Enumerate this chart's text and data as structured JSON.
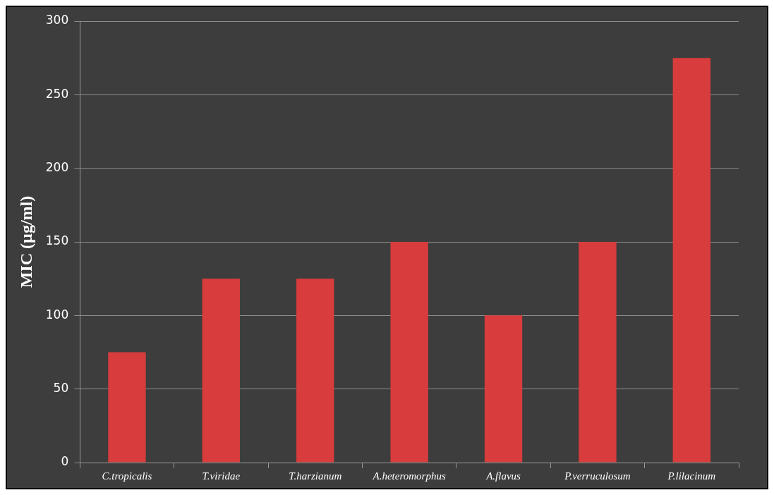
{
  "chart_data": {
    "type": "bar",
    "ylabel": "MIC (µg/ml)",
    "categories": [
      "C.tropicalis",
      "T.viridae",
      "T.harzianum",
      "A.heteromorphus",
      "A.flavus",
      "P.verruculosum",
      "P.lilacinum"
    ],
    "values": [
      75,
      125,
      125,
      150,
      100,
      150,
      275
    ],
    "color": "#d83c3c",
    "ylim": [
      0,
      300
    ],
    "yticks": [
      0,
      50,
      100,
      150,
      200,
      250,
      300
    ],
    "grid": "y",
    "legend": false
  }
}
